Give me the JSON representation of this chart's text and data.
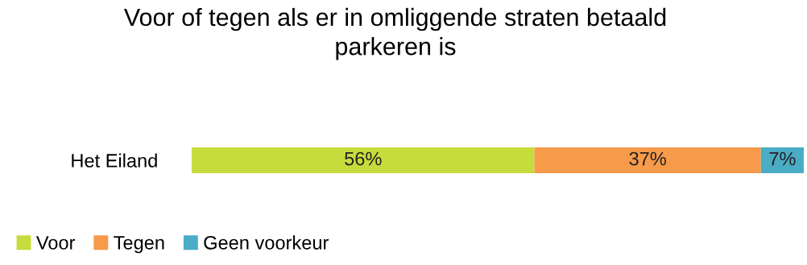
{
  "chart_data": {
    "type": "bar",
    "orientation": "horizontal",
    "stacked": true,
    "title": "Voor of tegen als er in omliggende straten betaald\nparkeren is",
    "categories": [
      "Het Eiland"
    ],
    "series": [
      {
        "name": "Voor",
        "color": "#c5dc3c",
        "values": [
          56
        ],
        "value_labels": [
          "56%"
        ]
      },
      {
        "name": "Tegen",
        "color": "#f79a4a",
        "values": [
          37
        ],
        "value_labels": [
          "37%"
        ]
      },
      {
        "name": "Geen voorkeur",
        "color": "#4bacc6",
        "values": [
          7
        ],
        "value_labels": [
          "7%"
        ]
      }
    ],
    "xlim": [
      0,
      100
    ],
    "tick_labels": "y",
    "legend": "bottom"
  }
}
